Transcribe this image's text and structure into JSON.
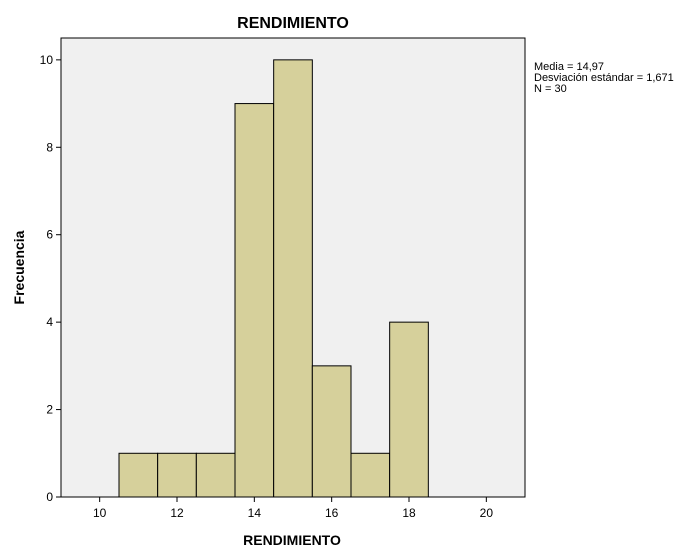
{
  "chart_data": {
    "type": "bar",
    "title": "RENDIMIENTO",
    "xlabel": "RENDIMIENTO",
    "ylabel": "Frecuencia",
    "bins": [
      {
        "from": 10.5,
        "to": 11.5,
        "count": 1
      },
      {
        "from": 11.5,
        "to": 12.5,
        "count": 1
      },
      {
        "from": 12.5,
        "to": 13.5,
        "count": 1
      },
      {
        "from": 13.5,
        "to": 14.5,
        "count": 9
      },
      {
        "from": 14.5,
        "to": 15.5,
        "count": 10
      },
      {
        "from": 15.5,
        "to": 16.5,
        "count": 3
      },
      {
        "from": 16.5,
        "to": 17.5,
        "count": 1
      },
      {
        "from": 17.5,
        "to": 18.5,
        "count": 4
      }
    ],
    "xlim": [
      9,
      21
    ],
    "ylim": [
      0,
      10.5
    ],
    "xticks": [
      "10",
      "12",
      "14",
      "16",
      "18",
      "20"
    ],
    "yticks": [
      "0",
      "2",
      "4",
      "6",
      "8",
      "10"
    ],
    "grid": false,
    "colors": {
      "bar_fill": "#d6d09b",
      "plot_background": "#f0f0f0",
      "bar_stroke": "#000000"
    }
  },
  "stats": {
    "mean": "Media = 14,97",
    "sd": "Desviación estándar = 1,671",
    "n": "N = 30"
  }
}
